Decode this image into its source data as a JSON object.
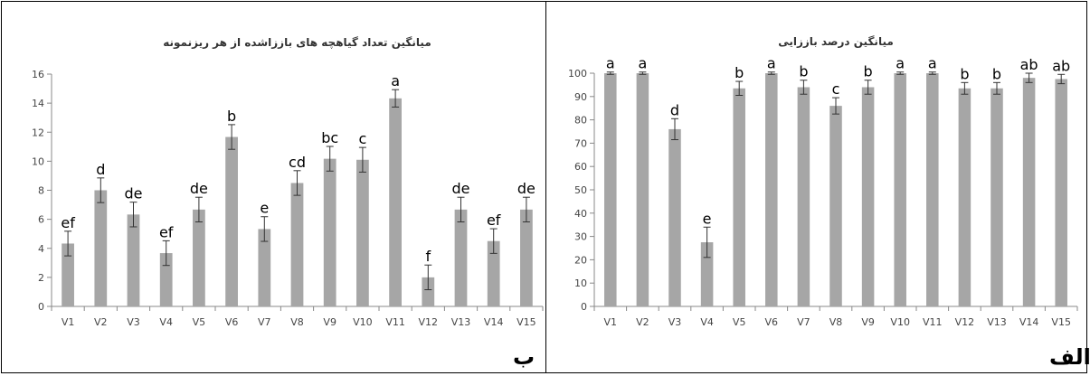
{
  "chart_data": [
    {
      "id": "right",
      "type": "bar",
      "title": "میانگین درصد باززایی",
      "panel_label": "الف",
      "ylim": [
        0,
        100
      ],
      "yticks": [
        0,
        10,
        20,
        30,
        40,
        50,
        60,
        70,
        80,
        90,
        100
      ],
      "categories": [
        "V1",
        "V2",
        "V3",
        "V4",
        "V5",
        "V6",
        "V7",
        "V8",
        "V9",
        "V10",
        "V11",
        "V12",
        "V13",
        "V14",
        "V15"
      ],
      "values": [
        100,
        100,
        76,
        27.5,
        93.5,
        100,
        94,
        86,
        94,
        100,
        100,
        93.5,
        93.5,
        98,
        97.5
      ],
      "errors": [
        0.5,
        0.5,
        4.5,
        6.5,
        3,
        0.5,
        3,
        3.5,
        3,
        0.5,
        0.5,
        2.5,
        2.5,
        2,
        2
      ],
      "letters": [
        "a",
        "a",
        "d",
        "e",
        "b",
        "a",
        "b",
        "c",
        "b",
        "a",
        "a",
        "b",
        "b",
        "ab",
        "ab"
      ],
      "bar_color": "#a6a6a6",
      "grid": false
    },
    {
      "id": "left",
      "type": "bar",
      "title": "میانگین تعداد گیاهچه های باززاشده از هر ریزنمونه",
      "panel_label": "ب",
      "ylim": [
        0,
        16
      ],
      "yticks": [
        0,
        2,
        4,
        6,
        8,
        10,
        12,
        14,
        16
      ],
      "categories": [
        "V1",
        "V2",
        "V3",
        "V4",
        "V5",
        "V6",
        "V7",
        "V8",
        "V9",
        "V10",
        "V11",
        "V12",
        "V13",
        "V14",
        "V15"
      ],
      "values": [
        4.33,
        8.0,
        6.33,
        3.67,
        6.67,
        11.67,
        5.33,
        8.5,
        10.17,
        10.1,
        14.33,
        2.0,
        6.67,
        4.5,
        6.67
      ],
      "errors": [
        0.85,
        0.85,
        0.85,
        0.85,
        0.85,
        0.85,
        0.85,
        0.85,
        0.85,
        0.85,
        0.6,
        0.85,
        0.85,
        0.85,
        0.85
      ],
      "letters": [
        "ef",
        "d",
        "de",
        "ef",
        "de",
        "b",
        "e",
        "cd",
        "bc",
        "c",
        "a",
        "f",
        "de",
        "ef",
        "de"
      ],
      "bar_color": "#a6a6a6",
      "grid": false
    }
  ]
}
